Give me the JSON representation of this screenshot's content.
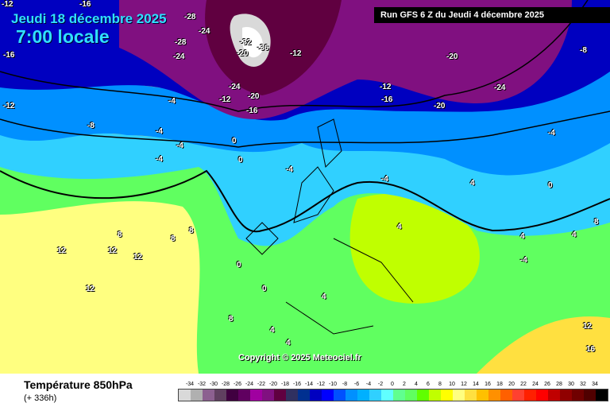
{
  "header": {
    "date": "Jeudi 18 décembre 2025",
    "local_time": "7:00 locale",
    "run": "Run GFS 6 Z du Jeudi 4 décembre 2025"
  },
  "copyright": "Copyright © 2025 Meteociel.fr",
  "footer": {
    "title": "Température 850hPa",
    "lead": "(+ 336h)"
  },
  "legend": {
    "labels": [
      "-34",
      "-32",
      "-30",
      "-28",
      "-26",
      "-24",
      "-22",
      "-20",
      "-18",
      "-16",
      "-14",
      "-12",
      "-10",
      "-8",
      "-6",
      "-4",
      "-2",
      "0",
      "2",
      "4",
      "6",
      "8",
      "10",
      "12",
      "14",
      "16",
      "18",
      "20",
      "22",
      "24",
      "26",
      "28",
      "30",
      "32",
      "34"
    ],
    "colors": [
      "#d9d9d9",
      "#b0b0b0",
      "#8c6090",
      "#604060",
      "#400040",
      "#600060",
      "#a000a0",
      "#801080",
      "#600040",
      "#303060",
      "#003090",
      "#0000c0",
      "#0000ff",
      "#0050ff",
      "#0090ff",
      "#00b0ff",
      "#30d0ff",
      "#60ffff",
      "#60ff90",
      "#60ff60",
      "#60ff00",
      "#c0ff00",
      "#ffff00",
      "#ffff80",
      "#ffe040",
      "#ffc000",
      "#ff9000",
      "#ff6000",
      "#ff4030",
      "#ff2000",
      "#ff0000",
      "#c00000",
      "#900000",
      "#700000",
      "#500000",
      "#000000"
    ]
  },
  "map_labels": [
    "-12",
    "-16",
    "-16",
    "-12",
    "-8",
    "-28",
    "-24",
    "-28",
    "-24",
    "-20",
    "-36",
    "-32",
    "-12",
    "-24",
    "-20",
    "-16",
    "-12",
    "-4",
    "-4",
    "-4",
    "-4",
    "0",
    "0",
    "-4",
    "-20",
    "-24",
    "-20",
    "-16",
    "-12",
    "-4",
    "-8",
    "-4",
    "4",
    "8",
    "8",
    "12",
    "12",
    "12",
    "12",
    "8",
    "0",
    "0",
    "4",
    "4",
    "4",
    "8",
    "4",
    "-4",
    "4",
    "12",
    "16",
    "8",
    "4",
    "0"
  ]
}
